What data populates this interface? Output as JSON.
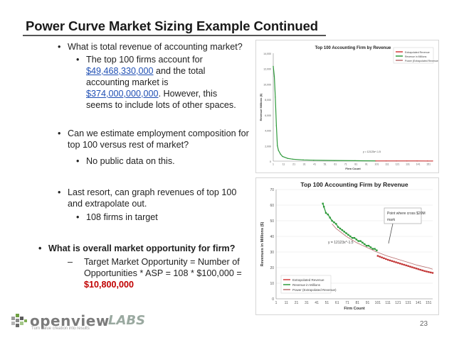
{
  "slide": {
    "title": "Power Curve Market Sizing Example Continued",
    "page_number": "23"
  },
  "bullets": {
    "b1": "What is total revenue of accounting market?",
    "b1_sub_pre": "The top 100 firms account for",
    "b1_sub_link1": "$49,468,330,000",
    "b1_sub_mid": "and the total accounting market is",
    "b1_sub_link2": "$374,000,000,000",
    "b1_sub_post": ".  However, this seems to include lots of other spaces.",
    "b2": "Can we estimate employment composition for top 100 versus rest of market?",
    "b2_sub": "No public data on this.",
    "b3": "Last resort, can graph revenues of top 100 and extrapolate out.",
    "b3_sub": "108 firms in target",
    "b4": "What is overall market opportunity for firm?",
    "b4_sub": "Target Market Opportunity = Number of Opportunities * ASP = 108 * $100,000 =",
    "b4_value": "$10,800,000",
    "bullet_char": "•",
    "dash_char": "–"
  },
  "logo": {
    "word1": "openview",
    "word2": "LABS",
    "tagline": "Turn value creation into results"
  },
  "chart_data": [
    {
      "type": "line",
      "title": "Top 100 Accounting Firm by Revenue",
      "ylabel": "Revenue Millions ($)",
      "xlabel": "Firm Count",
      "ylim": [
        0,
        14000
      ],
      "yticks": [
        "0",
        "2,000",
        "4,000",
        "6,000",
        "8,000",
        "10,000",
        "12,000",
        "14,000"
      ],
      "xticks": [
        "1",
        "11",
        "21",
        "31",
        "41",
        "51",
        "61",
        "71",
        "81",
        "91",
        "101",
        "111",
        "121",
        "131",
        "141",
        "151"
      ],
      "legend": [
        "Extrapolated Revenue",
        "Revenue in Millions",
        "Power (Extrapolated Revenue)"
      ],
      "equation": "y = 12123x^-1.5",
      "series": [
        {
          "name": "Revenue in Millions",
          "color": "#2e9a3b",
          "x": [
            1,
            2,
            3,
            4,
            5,
            6,
            8,
            10,
            15,
            20,
            30,
            40,
            60,
            80,
            100
          ],
          "values": [
            12300,
            11000,
            8300,
            4600,
            2000,
            1400,
            900,
            600,
            350,
            250,
            160,
            120,
            80,
            55,
            40
          ]
        },
        {
          "name": "Extrapolated Revenue",
          "color": "#d23b3b",
          "x": [
            100,
            110,
            120,
            130,
            140,
            150,
            155
          ],
          "values": [
            32,
            30,
            28,
            26,
            24,
            22,
            21
          ]
        }
      ]
    },
    {
      "type": "scatter",
      "title": "Top 100 Accounting Firm by Revenue",
      "ylabel": "Revenues in Millions ($)",
      "xlabel": "Firm Count",
      "ylim": [
        0,
        70
      ],
      "yticks": [
        "0",
        "10",
        "20",
        "30",
        "40",
        "50",
        "60",
        "70"
      ],
      "xticks": [
        "1",
        "11",
        "21",
        "31",
        "41",
        "51",
        "61",
        "71",
        "81",
        "91",
        "101",
        "111",
        "121",
        "131",
        "141",
        "151"
      ],
      "legend": [
        "Extrapolated Revenue",
        "Revenue in Millions",
        "Power (Extrapolated Revenue)"
      ],
      "annotation": "Point where cross $20M mark",
      "equation": "y = 12123x^-1.5",
      "series": [
        {
          "name": "Revenue in Millions",
          "color": "#2e9a3b",
          "x": [
            47,
            48,
            50,
            52,
            54,
            56,
            58,
            60,
            62,
            64,
            66,
            68,
            70,
            72,
            74,
            76,
            78,
            80,
            82,
            84,
            86,
            88,
            90,
            92,
            94,
            96,
            98,
            100
          ],
          "values": [
            61,
            59,
            55,
            54,
            52,
            50,
            49,
            48,
            46,
            45,
            44,
            43,
            42,
            41,
            40,
            39,
            39,
            38,
            37,
            37,
            36,
            35,
            34,
            34,
            33,
            32,
            32,
            31
          ]
        },
        {
          "name": "Extrapolated Revenue",
          "color": "#c43a3a",
          "x": [
            101,
            103,
            105,
            107,
            109,
            111,
            113,
            115,
            117,
            119,
            121,
            123,
            125,
            127,
            129,
            131,
            133,
            135,
            137,
            139,
            141,
            143,
            145,
            147,
            149,
            151,
            153,
            155
          ],
          "values": [
            27.5,
            27,
            26.5,
            26,
            25.5,
            25,
            24.6,
            24.2,
            23.8,
            23.4,
            23,
            22.6,
            22.2,
            21.8,
            21.4,
            21,
            20.6,
            20.2,
            19.8,
            19.4,
            19,
            18.6,
            18.2,
            17.8,
            17.5,
            17.2,
            16.9,
            16.6
          ]
        },
        {
          "name": "Power (Extrapolated Revenue)",
          "color": "#b86d6d",
          "x": [
            56,
            60,
            70,
            80,
            90,
            100,
            110,
            120,
            130,
            140,
            150,
            155
          ],
          "values": [
            48,
            45,
            40,
            36,
            33,
            30,
            27.5,
            25.5,
            23.5,
            21.5,
            20,
            19
          ]
        }
      ]
    }
  ]
}
